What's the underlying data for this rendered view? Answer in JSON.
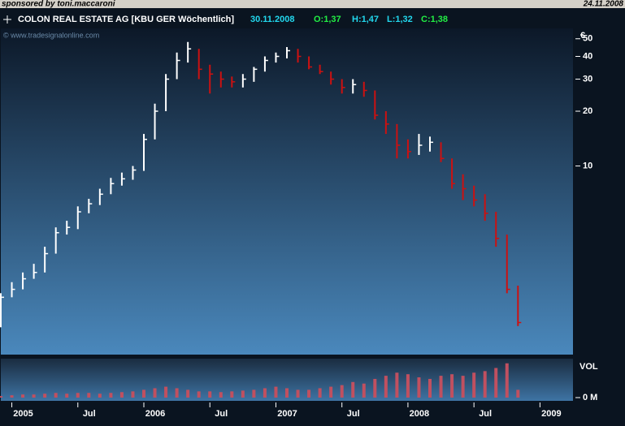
{
  "header": {
    "sponsor": "sponsored by toni.maccaroni",
    "date": "24.11.2008"
  },
  "chart_data": [
    {
      "type": "ohlc",
      "title": "COLON REAL ESTATE AG [KBU GER  Wöchentlich]",
      "subtitle": [
        "30.11.2008",
        "O:1,37",
        "H:1,47",
        "L:1,32",
        "C:1,38"
      ],
      "watermark": "© www.tradesignalonline.com",
      "unit": "€",
      "log_scale": true,
      "x": [
        "2004-12",
        "2005-01",
        "2005-02",
        "2005-03",
        "2005-04",
        "2005-05",
        "2005-06",
        "2005-07",
        "2005-08",
        "2005-09",
        "2005-10",
        "2005-11",
        "2005-12",
        "2006-01",
        "2006-02",
        "2006-03",
        "2006-04",
        "2006-05",
        "2006-06",
        "2006-07",
        "2006-08",
        "2006-09",
        "2006-10",
        "2006-11",
        "2006-12",
        "2007-01",
        "2007-02",
        "2007-03",
        "2007-04",
        "2007-05",
        "2007-06",
        "2007-07",
        "2007-08",
        "2007-09",
        "2007-10",
        "2007-11",
        "2007-12",
        "2008-01",
        "2008-02",
        "2008-03",
        "2008-04",
        "2008-05",
        "2008-06",
        "2008-07",
        "2008-08",
        "2008-09",
        "2008-10",
        "2008-11"
      ],
      "series": [
        {
          "name": "high",
          "values": [
            2.0,
            2.3,
            2.6,
            2.9,
            3.6,
            4.6,
            5.0,
            6.0,
            6.6,
            7.5,
            8.6,
            9.2,
            10,
            15,
            22,
            32,
            42,
            48,
            44,
            36,
            33,
            31,
            32,
            35,
            40,
            42,
            45,
            44,
            40,
            36,
            33,
            30,
            30,
            29,
            26,
            20,
            17,
            14,
            15,
            14.5,
            13.5,
            11,
            9,
            7.8,
            7,
            5.6,
            4.2,
            2.2
          ]
        },
        {
          "name": "low",
          "values": [
            1.3,
            1.9,
            2.1,
            2.4,
            2.6,
            3.3,
            4.2,
            4.5,
            5.5,
            6.1,
            7,
            7.8,
            8.4,
            9.4,
            14,
            20,
            30,
            37,
            30,
            25,
            27,
            27,
            27,
            29,
            33,
            37,
            39,
            37,
            34,
            32,
            28,
            25,
            25,
            24,
            18,
            15,
            11,
            11,
            11.5,
            12,
            10.5,
            7.5,
            6.5,
            6,
            5,
            3.6,
            2,
            1.32
          ]
        },
        {
          "name": "close",
          "values": [
            1.9,
            2.1,
            2.4,
            2.6,
            3.3,
            4.3,
            4.6,
            5.6,
            6.2,
            7.0,
            8.0,
            8.5,
            9.5,
            14,
            20,
            30,
            38,
            44,
            34,
            32,
            30,
            29,
            30,
            34,
            38,
            40,
            43,
            40,
            35,
            33,
            30,
            27,
            28,
            26,
            19,
            17,
            13,
            12,
            13,
            13.5,
            11,
            8,
            7.5,
            6.5,
            5.5,
            4,
            2.1,
            1.38
          ]
        }
      ],
      "up_color": "#ffffff",
      "down_color": "#cc1111",
      "xlim": [
        "2004-12",
        "2009-04"
      ],
      "xticks": [
        {
          "value": "2005-01",
          "label": "2005"
        },
        {
          "value": "2005-07",
          "label": "Jul"
        },
        {
          "value": "2006-01",
          "label": "2006"
        },
        {
          "value": "2006-07",
          "label": "Jul"
        },
        {
          "value": "2007-01",
          "label": "2007"
        },
        {
          "value": "2007-07",
          "label": "Jul"
        },
        {
          "value": "2008-01",
          "label": "2008"
        },
        {
          "value": "2008-07",
          "label": "Jul"
        },
        {
          "value": "2009-01",
          "label": "2009"
        }
      ],
      "ylim": [
        0.92,
        57
      ],
      "yticks": [
        10,
        20,
        30,
        40,
        50
      ]
    },
    {
      "type": "volume",
      "label": "VOL",
      "color": "#c05060",
      "values": [
        0.1,
        0.15,
        0.2,
        0.2,
        0.25,
        0.3,
        0.25,
        0.3,
        0.3,
        0.25,
        0.3,
        0.35,
        0.4,
        0.5,
        0.6,
        0.7,
        0.6,
        0.5,
        0.4,
        0.4,
        0.35,
        0.4,
        0.45,
        0.5,
        0.6,
        0.7,
        0.6,
        0.5,
        0.5,
        0.6,
        0.7,
        0.8,
        1.0,
        0.9,
        1.2,
        1.4,
        1.6,
        1.5,
        1.3,
        1.2,
        1.4,
        1.5,
        1.4,
        1.6,
        1.7,
        1.9,
        2.2,
        0.5
      ],
      "ylim": [
        0,
        2.5
      ],
      "yticks": [
        {
          "value": 0,
          "label": "0 M"
        }
      ]
    }
  ]
}
